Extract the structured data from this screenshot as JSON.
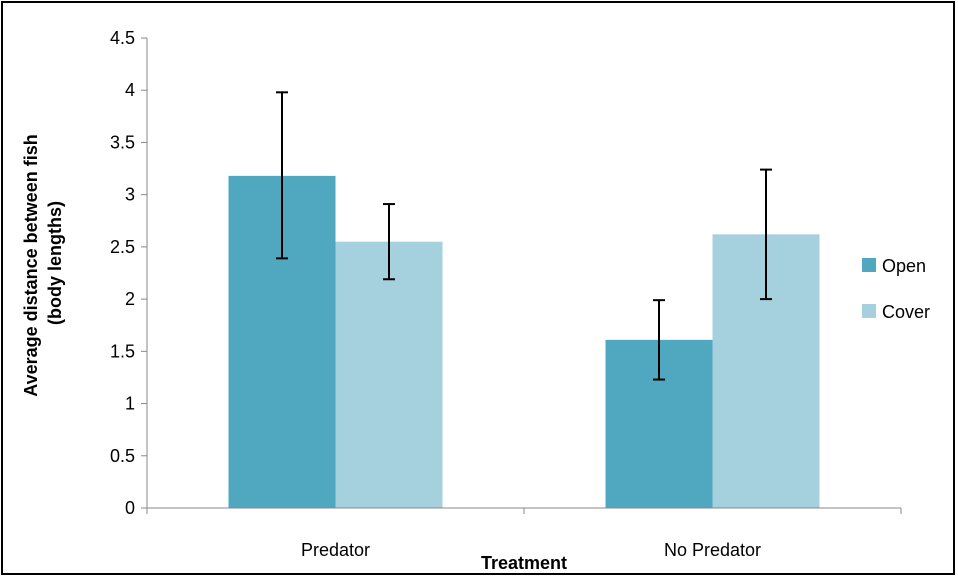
{
  "chart_data": {
    "type": "bar",
    "xlabel": "Treatment",
    "ylabel_lines": [
      "Average distance between fish",
      "(body lengths)"
    ],
    "categories": [
      "Predator",
      "No Predator"
    ],
    "ylim": [
      0,
      4.5
    ],
    "yticks": [
      "0",
      "0.5",
      "1",
      "1.5",
      "2",
      "2.5",
      "3",
      "3.5",
      "4",
      "4.5"
    ],
    "grid": false,
    "legend_position": "right",
    "series": [
      {
        "name": "Open",
        "color": "#4fa8bf",
        "values": [
          3.18,
          1.61
        ],
        "error_low": [
          2.39,
          1.23
        ],
        "error_high": [
          3.98,
          1.99
        ]
      },
      {
        "name": "Cover",
        "color": "#a5d0de",
        "values": [
          2.55,
          2.62
        ],
        "error_low": [
          2.19,
          2.0
        ],
        "error_high": [
          2.91,
          3.24
        ]
      }
    ]
  }
}
